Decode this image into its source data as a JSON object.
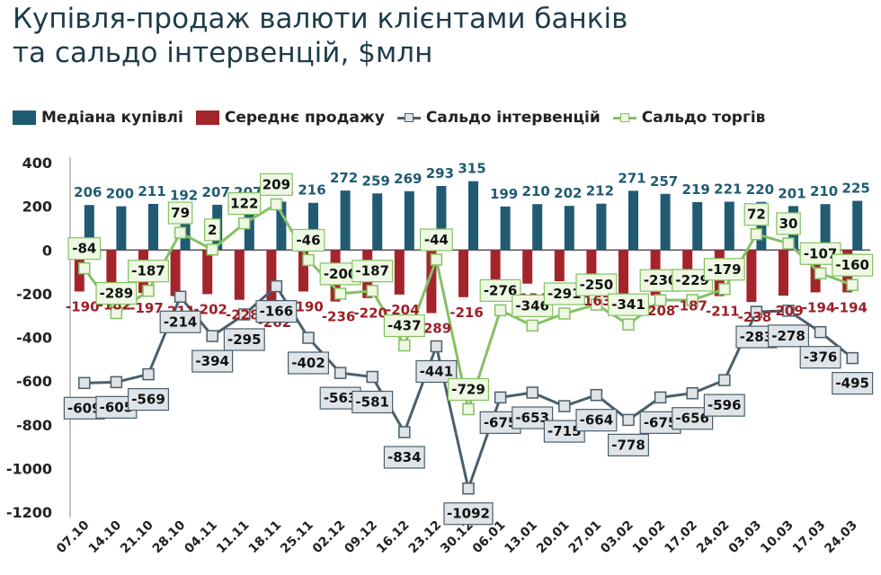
{
  "title_line1": "Купівля-продаж валюти клієнтами банків",
  "title_line2": "та сальдо інтервенцій, $млн",
  "colors": {
    "buy": "#1f5b73",
    "sell": "#a3252b",
    "interv": "#4a5f6b",
    "trade": "#84c163",
    "buy_label": "#1f5b73",
    "sell_label": "#9b1f26",
    "box_interv": "#dfe4e8",
    "box_trade": "#eef8e3"
  },
  "chart_data": {
    "type": "bar",
    "title": "Купівля-продаж валюти клієнтами банків та сальдо інтервенцій, $млн",
    "categories": [
      "07.10",
      "14.10",
      "21.10",
      "28.10",
      "04.11",
      "11.11",
      "18.11",
      "25.11",
      "02.12",
      "09.12",
      "16.12",
      "23.12",
      "30.12",
      "06.01",
      "13.01",
      "20.01",
      "27.01",
      "03.02",
      "10.02",
      "17.02",
      "24.02",
      "03.03",
      "10.03",
      "17.03",
      "24.03"
    ],
    "yticks": [
      "400",
      "200",
      "0",
      "-200",
      "-400",
      "-600",
      "-800",
      "-1000",
      "-1200"
    ],
    "ylim": [
      -1200,
      400
    ],
    "grid": false,
    "legend_position": "top",
    "series": [
      {
        "name": "Медіана купівлі",
        "type": "bar",
        "values": [
          206,
          200,
          211,
          192,
          207,
          207,
          221,
          216,
          272,
          259,
          269,
          293,
          315,
          199,
          210,
          202,
          212,
          271,
          257,
          219,
          221,
          220,
          201,
          210,
          225
        ],
        "labels": [
          "206",
          "200",
          "211",
          "192",
          "207",
          "207",
          "221",
          "216",
          "272",
          "259",
          "269",
          "293",
          "315",
          "199",
          "210",
          "202",
          "212",
          "271",
          "257",
          "219",
          "221",
          "220",
          "201",
          "210",
          "225"
        ]
      },
      {
        "name": "Середнє продажу",
        "type": "bar",
        "values": [
          -190,
          -182,
          -197,
          -211,
          -202,
          -228,
          -262,
          -190,
          -236,
          -220,
          -204,
          -289,
          -216,
          -142,
          -154,
          -143,
          -163,
          -208,
          -208,
          -187,
          -211,
          -238,
          -209,
          -194,
          -194
        ],
        "labels": [
          "-190",
          "-182",
          "-197",
          "-211",
          "-202",
          "-228",
          "-262",
          "-190",
          "-236",
          "-220",
          "-204",
          "-289",
          "-216",
          "-142",
          "-154",
          "-143",
          "-163",
          "-208",
          "-208",
          "-187",
          "-211",
          "-238",
          "-209",
          "-194",
          "-194"
        ]
      },
      {
        "name": "Сальдо інтервенцій",
        "type": "line",
        "values": [
          -609,
          -605,
          -569,
          -214,
          -394,
          -295,
          -166,
          -402,
          -563,
          -581,
          -834,
          -441,
          -1092,
          -675,
          -653,
          -715,
          -664,
          -778,
          -675,
          -656,
          -596,
          -283,
          -278,
          -376,
          -495
        ],
        "labels": [
          "-609",
          "-605",
          "-569",
          "-214",
          "-394",
          "-295",
          "-166",
          "-402",
          "-563",
          "-581",
          "-834",
          "-441",
          "-1092",
          "-675",
          "-653",
          "-715",
          "-664",
          "-778",
          "-675",
          "-656",
          "-596",
          "-283",
          "-278",
          "-376",
          "-495"
        ]
      },
      {
        "name": "Сальдо торгів",
        "type": "line",
        "values": [
          -84,
          -289,
          -187,
          79,
          2,
          122,
          209,
          -46,
          -200,
          -187,
          -437,
          -44,
          -729,
          -276,
          -346,
          -291,
          -250,
          -341,
          -230,
          -229,
          -179,
          72,
          30,
          -107,
          -160
        ],
        "labels": [
          "-84",
          "-289",
          "-187",
          "79",
          "2",
          "122",
          "209",
          "-46",
          "-200",
          "-187",
          "-437",
          "-44",
          "-729",
          "-276",
          "-346",
          "-291",
          "-250",
          "-341",
          "-230",
          "-229",
          "-179",
          "72",
          "30",
          "-107",
          "-160"
        ]
      }
    ]
  }
}
